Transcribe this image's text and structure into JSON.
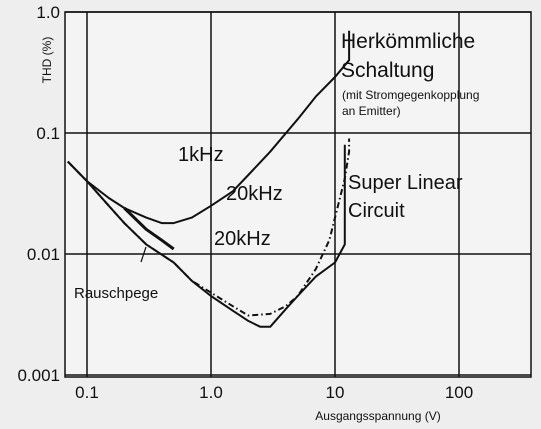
{
  "chart_data": {
    "type": "line",
    "xlabel": "Ausgangsspannung (V)",
    "ylabel": "THD (%)",
    "xscale": "log",
    "yscale": "log",
    "xlim": [
      0.07,
      300
    ],
    "ylim": [
      0.001,
      1.0
    ],
    "grid": true,
    "x_ticks": [
      {
        "value": 0.1,
        "label": "0.1"
      },
      {
        "value": 1,
        "label": "1.0"
      },
      {
        "value": 10,
        "label": "10"
      },
      {
        "value": 100,
        "label": "100"
      }
    ],
    "y_ticks": [
      {
        "value": 1.0,
        "label": "1.0"
      },
      {
        "value": 0.1,
        "label": "0.1"
      },
      {
        "value": 0.01,
        "label": "0.01"
      },
      {
        "value": 0.001,
        "label": "0.001"
      }
    ],
    "series": [
      {
        "name": "1kHz",
        "group": "Herkömmliche Schaltung",
        "style": "solid",
        "color": "#111111",
        "points": [
          [
            0.07,
            0.058
          ],
          [
            0.1,
            0.04
          ],
          [
            0.15,
            0.029
          ],
          [
            0.2,
            0.024
          ],
          [
            0.3,
            0.02
          ],
          [
            0.4,
            0.018
          ],
          [
            0.5,
            0.018
          ],
          [
            0.7,
            0.02
          ],
          [
            1.0,
            0.025
          ],
          [
            1.5,
            0.033
          ],
          [
            2.0,
            0.045
          ],
          [
            3.0,
            0.07
          ],
          [
            5.0,
            0.13
          ],
          [
            7.0,
            0.2
          ],
          [
            10,
            0.29
          ],
          [
            13,
            0.4
          ],
          [
            13,
            0.7
          ]
        ]
      },
      {
        "name": "20kHz",
        "group": "Herkömmliche Schaltung",
        "style": "dashdot",
        "color": "#111111",
        "points": [
          [
            0.07,
            0.058
          ],
          [
            0.1,
            0.04
          ],
          [
            0.15,
            0.025
          ],
          [
            0.2,
            0.018
          ],
          [
            0.3,
            0.012
          ],
          [
            0.5,
            0.0085
          ],
          [
            0.7,
            0.006
          ],
          [
            1.0,
            0.0048
          ],
          [
            1.5,
            0.0037
          ],
          [
            2.0,
            0.0031
          ],
          [
            3.0,
            0.0032
          ],
          [
            4.0,
            0.0037
          ],
          [
            5.0,
            0.0045
          ],
          [
            7.0,
            0.0075
          ],
          [
            9.0,
            0.013
          ],
          [
            10,
            0.02
          ],
          [
            12,
            0.042
          ],
          [
            13,
            0.07
          ],
          [
            13,
            0.09
          ]
        ]
      },
      {
        "name": "20kHz",
        "group": "Super Linear Circuit",
        "style": "solid",
        "color": "#111111",
        "points": [
          [
            0.07,
            0.058
          ],
          [
            0.1,
            0.04
          ],
          [
            0.15,
            0.025
          ],
          [
            0.2,
            0.018
          ],
          [
            0.3,
            0.012
          ],
          [
            0.5,
            0.0085
          ],
          [
            0.7,
            0.006
          ],
          [
            1.0,
            0.0045
          ],
          [
            1.5,
            0.0034
          ],
          [
            2.0,
            0.0028
          ],
          [
            2.5,
            0.0025
          ],
          [
            3.0,
            0.0025
          ],
          [
            4.0,
            0.0035
          ],
          [
            5.0,
            0.0045
          ],
          [
            7.0,
            0.0065
          ],
          [
            10,
            0.0085
          ],
          [
            12,
            0.012
          ],
          [
            12,
            0.08
          ]
        ]
      },
      {
        "name": "Rauschpege",
        "style": "solid",
        "color": "#111111",
        "points": [
          [
            0.2,
            0.024
          ],
          [
            0.3,
            0.016
          ],
          [
            0.4,
            0.013
          ],
          [
            0.5,
            0.011
          ]
        ]
      }
    ],
    "annotations": {
      "herk_title_1": "Herkömmliche",
      "herk_title_2": "Schaltung",
      "herk_sub_1": "(mit Stromgegenkopplung",
      "herk_sub_2": "an Emitter)",
      "super_1": "Super Linear",
      "super_2": "Circuit",
      "label_1khz": "1kHz",
      "label_20khz_upper": "20kHz",
      "label_20khz_lower": "20kHz",
      "label_rausch": "Rauschpege"
    }
  }
}
